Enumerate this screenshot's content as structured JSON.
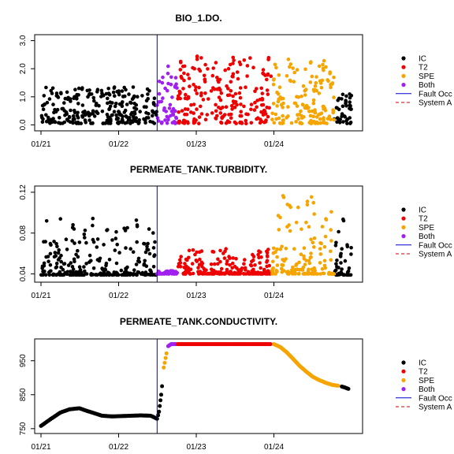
{
  "colors": {
    "IC": "#000000",
    "T2": "#ee0000",
    "SPE": "#f5a400",
    "Both": "#a020f0",
    "fault": "#0000cd",
    "anom": "#cd0000"
  },
  "x_ticks": [
    "01/21",
    "01/22",
    "01/23",
    "01/24"
  ],
  "legend_labels": [
    "IC",
    "T2",
    "SPE",
    "Both",
    "Fault Occ",
    "System A"
  ],
  "chart_data": [
    {
      "type": "scatter",
      "title": "BIO_1.DO.",
      "xlabel": "",
      "ylabel": "",
      "x_range": [
        "2021-01-01",
        "2024-12-31"
      ],
      "ylim": [
        -0.1,
        3.1
      ],
      "y_ticks": [
        "0.0",
        "1.0",
        "2.0",
        "3.0"
      ],
      "fault_date": "2022-07-01",
      "series": [
        {
          "name": "IC",
          "segments": [
            [
              "2021-01-01",
              "2022-07-01",
              0.05,
              1.35
            ],
            [
              "2024-10-10",
              "2024-12-31",
              0.05,
              1.1
            ]
          ]
        },
        {
          "name": "Both",
          "segments": [
            [
              "2022-07-01",
              "2022-10-05",
              0.05,
              2.2
            ]
          ]
        },
        {
          "name": "T2",
          "segments": [
            [
              "2022-10-05",
              "2023-12-20",
              0.05,
              2.55
            ]
          ]
        },
        {
          "name": "SPE",
          "segments": [
            [
              "2023-12-20",
              "2024-10-10",
              0.05,
              2.35
            ]
          ]
        }
      ]
    },
    {
      "type": "scatter",
      "title": "PERMEATE_TANK.TURBIDITY.",
      "xlabel": "",
      "ylabel": "",
      "x_range": [
        "2021-01-01",
        "2024-12-31"
      ],
      "ylim": [
        0.035,
        0.123
      ],
      "y_ticks": [
        "0.04",
        "0.08",
        "0.12"
      ],
      "fault_date": "2022-07-01",
      "series": [
        {
          "name": "IC",
          "segments": [
            [
              "2021-01-01",
              "2022-07-01",
              0.039,
              0.095
            ],
            [
              "2024-10-10",
              "2024-12-31",
              0.039,
              0.094
            ]
          ]
        },
        {
          "name": "Both",
          "segments": [
            [
              "2022-07-01",
              "2022-10-05",
              0.04,
              0.043
            ]
          ]
        },
        {
          "name": "T2",
          "segments": [
            [
              "2022-10-05",
              "2023-12-20",
              0.04,
              0.065
            ]
          ]
        },
        {
          "name": "SPE",
          "segments": [
            [
              "2023-12-20",
              "2024-10-10",
              0.04,
              0.118
            ]
          ]
        }
      ]
    },
    {
      "type": "scatter",
      "title": "PERMEATE_TANK.CONDUCTIVITY.",
      "xlabel": "",
      "ylabel": "",
      "x_range": [
        "2021-01-01",
        "2024-12-31"
      ],
      "ylim": [
        745,
        1005
      ],
      "y_ticks": [
        "750",
        "850",
        "950"
      ],
      "fault_date": "2022-07-01",
      "series": [
        {
          "name": "IC",
          "points": [
            [
              "2021-01-01",
              758
            ],
            [
              "2021-02-15",
              778
            ],
            [
              "2021-04-01",
              797
            ],
            [
              "2021-05-15",
              807
            ],
            [
              "2021-07-01",
              810
            ],
            [
              "2021-08-01",
              803
            ],
            [
              "2021-09-01",
              797
            ],
            [
              "2021-10-15",
              788
            ],
            [
              "2021-12-01",
              786
            ],
            [
              "2022-01-15",
              787
            ],
            [
              "2022-03-01",
              788
            ],
            [
              "2022-04-15",
              789
            ],
            [
              "2022-06-01",
              788
            ],
            [
              "2022-07-01",
              779
            ],
            [
              "2022-07-10",
              800
            ],
            [
              "2022-07-20",
              850
            ],
            [
              "2022-07-28",
              900
            ]
          ]
        },
        {
          "name": "SPE",
          "points": [
            [
              "2022-08-01",
              930
            ],
            [
              "2022-08-10",
              958
            ],
            [
              "2022-08-18",
              985
            ]
          ]
        },
        {
          "name": "Both",
          "points": [
            [
              "2022-08-22",
              993
            ],
            [
              "2022-09-05",
              999
            ],
            [
              "2022-10-01",
              999
            ]
          ]
        },
        {
          "name": "T2",
          "points": [
            [
              "2022-10-05",
              999
            ],
            [
              "2023-03-01",
              999
            ],
            [
              "2023-08-01",
              999
            ],
            [
              "2023-12-20",
              999
            ]
          ]
        },
        {
          "name": "SPE",
          "points": [
            [
              "2024-01-01",
              999
            ],
            [
              "2024-02-01",
              990
            ],
            [
              "2024-03-01",
              975
            ],
            [
              "2024-04-01",
              955
            ],
            [
              "2024-05-01",
              935
            ],
            [
              "2024-06-01",
              918
            ],
            [
              "2024-07-01",
              903
            ],
            [
              "2024-08-01",
              893
            ],
            [
              "2024-09-01",
              885
            ],
            [
              "2024-10-01",
              879
            ],
            [
              "2024-11-01",
              876
            ]
          ]
        },
        {
          "name": "IC",
          "points": [
            [
              "2024-11-15",
              874
            ],
            [
              "2024-12-01",
              871
            ],
            [
              "2024-12-20",
              866
            ]
          ]
        }
      ]
    }
  ]
}
